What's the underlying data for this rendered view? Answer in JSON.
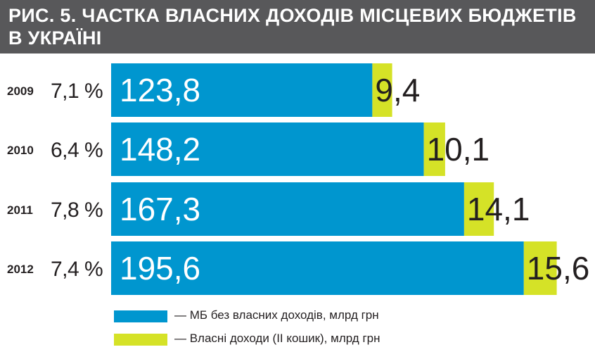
{
  "header": {
    "title": "РИС. 5. ЧАСТКА ВЛАСНИХ ДОХОДІВ МІСЦЕВИХ БЮДЖЕТІВ В УКРАЇНІ"
  },
  "colors": {
    "header_bg": "#58585a",
    "series_1": "#0096cf",
    "series_2": "#d5e227",
    "text": "#231f20"
  },
  "chart_data": {
    "type": "bar",
    "orientation": "horizontal",
    "stacked": true,
    "categories": [
      "2009",
      "2010",
      "2011",
      "2012"
    ],
    "shares": [
      "7,1 %",
      "6,4 %",
      "7,8 %",
      "7,4 %"
    ],
    "series": [
      {
        "name": "— МБ без власних доходів, млрд грн",
        "values": [
          123.8,
          148.2,
          167.3,
          195.6
        ],
        "labels": [
          "123,8",
          "148,2",
          "167,3",
          "195,6"
        ],
        "color": "#0096cf"
      },
      {
        "name": "— Власні доходи (ІІ кошик), млрд грн",
        "values": [
          9.4,
          10.1,
          14.1,
          15.6
        ],
        "labels": [
          "9,4",
          "10,1",
          "14,1",
          "15,6"
        ],
        "color": "#d5e227"
      }
    ],
    "legend_position": "bottom",
    "grid": false
  }
}
